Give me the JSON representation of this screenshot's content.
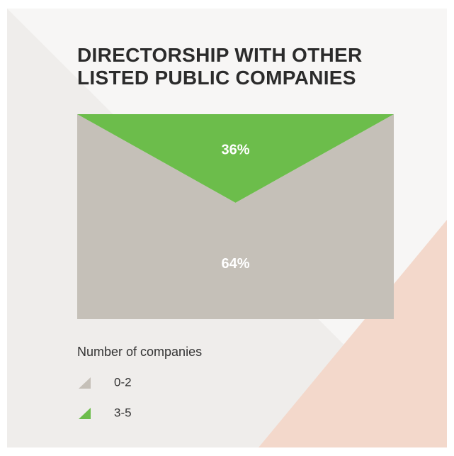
{
  "chart_data": {
    "type": "area",
    "title": "DIRECTORSHIP WITH OTHER LISTED PUBLIC COMPANIES",
    "legend_title": "Number of companies",
    "categories": [
      "0-2",
      "3-5"
    ],
    "values": [
      64,
      36
    ],
    "value_labels": [
      "64%",
      "36%"
    ],
    "colors": [
      "#c5c0b8",
      "#6cbd4b"
    ]
  }
}
